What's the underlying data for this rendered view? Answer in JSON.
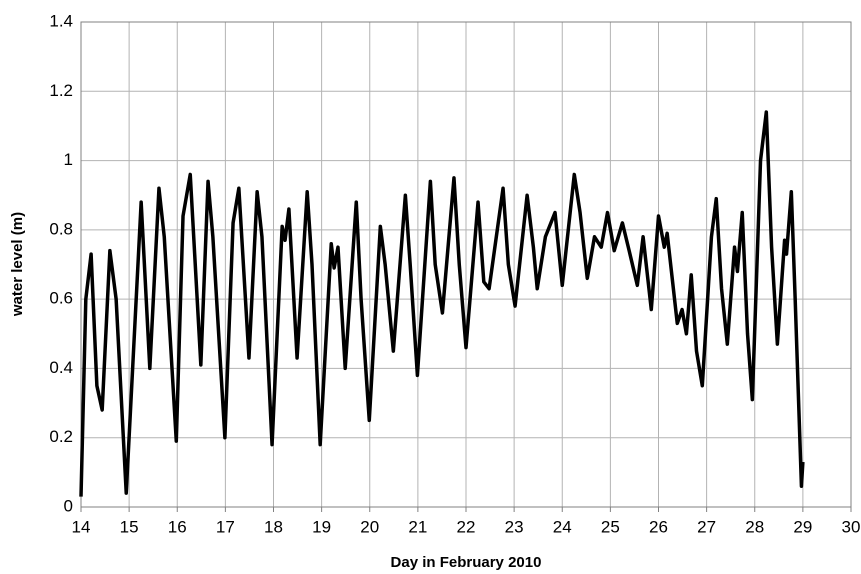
{
  "chart_data": {
    "type": "line",
    "xlabel": "Day in February 2010",
    "ylabel": "water level (m)",
    "x": [
      14.0,
      14.1,
      14.21,
      14.33,
      14.44,
      14.6,
      14.73,
      14.94,
      15.25,
      15.43,
      15.62,
      15.73,
      15.98,
      16.12,
      16.27,
      16.49,
      16.64,
      16.74,
      16.99,
      17.16,
      17.28,
      17.49,
      17.66,
      17.76,
      17.97,
      18.18,
      18.24,
      18.32,
      18.49,
      18.7,
      18.8,
      18.97,
      19.2,
      19.26,
      19.34,
      19.49,
      19.72,
      19.82,
      19.99,
      20.22,
      20.32,
      20.49,
      20.74,
      20.84,
      20.99,
      21.26,
      21.36,
      21.51,
      21.75,
      21.86,
      22.0,
      22.25,
      22.37,
      22.48,
      22.77,
      22.88,
      23.02,
      23.27,
      23.4,
      23.48,
      23.65,
      23.85,
      24.0,
      24.25,
      24.37,
      24.52,
      24.67,
      24.81,
      24.94,
      25.08,
      25.25,
      25.39,
      25.56,
      25.68,
      25.85,
      26.0,
      26.12,
      26.18,
      26.39,
      26.49,
      26.58,
      26.68,
      26.79,
      26.91,
      27.1,
      27.2,
      27.31,
      27.43,
      27.58,
      27.64,
      27.74,
      27.85,
      27.95,
      28.12,
      28.24,
      28.35,
      28.47,
      28.62,
      28.66,
      28.76,
      28.84,
      28.97,
      29.0
    ],
    "series": [
      {
        "name": "water level",
        "color": "#000000",
        "values": [
          0.03,
          0.6,
          0.73,
          0.35,
          0.28,
          0.74,
          0.6,
          0.04,
          0.88,
          0.4,
          0.92,
          0.78,
          0.19,
          0.84,
          0.96,
          0.41,
          0.94,
          0.78,
          0.2,
          0.82,
          0.92,
          0.43,
          0.91,
          0.78,
          0.18,
          0.81,
          0.77,
          0.86,
          0.43,
          0.91,
          0.7,
          0.18,
          0.76,
          0.69,
          0.75,
          0.4,
          0.88,
          0.6,
          0.25,
          0.81,
          0.7,
          0.45,
          0.9,
          0.7,
          0.38,
          0.94,
          0.7,
          0.56,
          0.95,
          0.7,
          0.46,
          0.88,
          0.65,
          0.63,
          0.92,
          0.7,
          0.58,
          0.9,
          0.75,
          0.63,
          0.78,
          0.85,
          0.64,
          0.96,
          0.85,
          0.66,
          0.78,
          0.75,
          0.85,
          0.74,
          0.82,
          0.74,
          0.64,
          0.78,
          0.57,
          0.84,
          0.75,
          0.79,
          0.53,
          0.57,
          0.5,
          0.67,
          0.45,
          0.35,
          0.78,
          0.89,
          0.63,
          0.47,
          0.75,
          0.68,
          0.85,
          0.5,
          0.31,
          1.0,
          1.14,
          0.75,
          0.47,
          0.77,
          0.73,
          0.91,
          0.6,
          0.06,
          0.13
        ]
      }
    ],
    "xlim": [
      14,
      30
    ],
    "xticks": [
      14,
      15,
      16,
      17,
      18,
      19,
      20,
      21,
      22,
      23,
      24,
      25,
      26,
      27,
      28,
      29,
      30
    ],
    "ylim": [
      0,
      1.4
    ],
    "yticks": [
      0,
      0.2,
      0.4,
      0.6,
      0.8,
      1,
      1.2,
      1.4
    ],
    "grid": true
  }
}
